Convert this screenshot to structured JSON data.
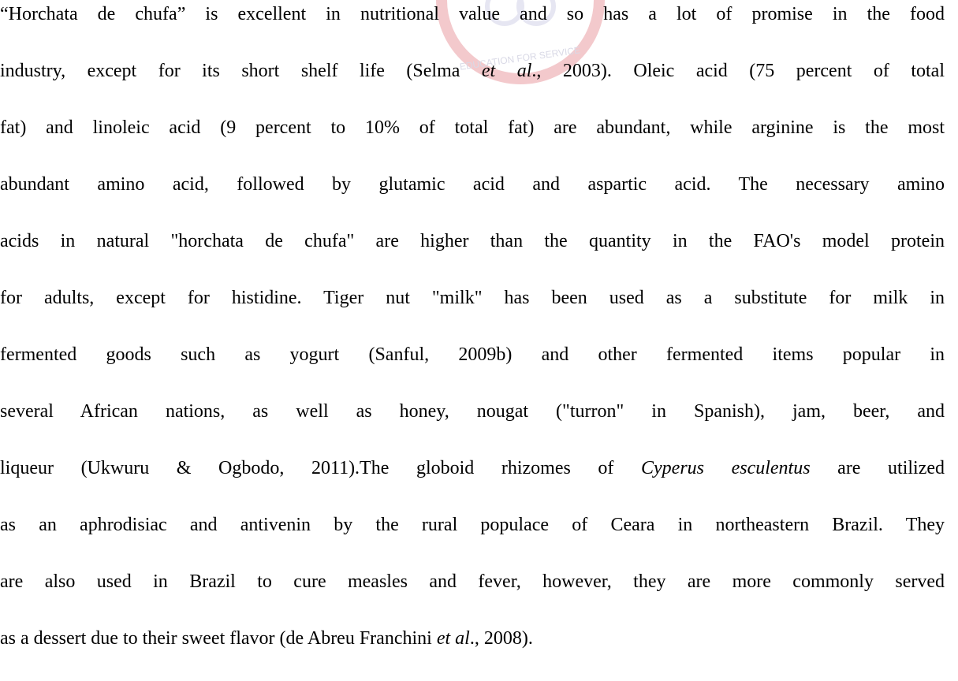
{
  "watermark_text": "EDUCATION FOR SERVICE",
  "paragraph": {
    "lines": [
      [
        "“Horchata de chufa” is excellent in nutritional value and so has a lot of promise in the food"
      ],
      [
        "industry, except for its short shelf life (Selma ",
        {
          "text": "et al",
          "italic": true
        },
        "., 2003). Oleic acid (75 percent of total"
      ],
      [
        "fat) and linoleic acid (9 percent to 10% of total fat) are abundant, while arginine is the most"
      ],
      [
        "abundant amino acid, followed by glutamic acid and aspartic acid. The necessary amino"
      ],
      [
        "acids in natural \"horchata de chufa\" are higher than the quantity in the FAO's model protein"
      ],
      [
        "for adults, except for histidine. Tiger nut \"milk\" has been used as a substitute for milk in"
      ],
      [
        "fermented goods such as yogurt (Sanful, 2009b) and other fermented items popular in"
      ],
      [
        "several African nations, as well as honey, nougat (\"turron\" in Spanish), jam, beer, and"
      ],
      [
        "liqueur (Ukwuru & Ogbodo, 2011).The globoid rhizomes of ",
        {
          "text": "Cyperus esculentus",
          "italic": true
        },
        " are utilized"
      ],
      [
        "as an aphrodisiac and antivenin by the rural populace of Ceara in northeastern Brazil. They"
      ],
      [
        "are also used in Brazil to cure measles and fever, however, they are more commonly served"
      ],
      [
        "as a dessert due to their sweet flavor (de Abreu Franchini ",
        {
          "text": "et al",
          "italic": true
        },
        "., 2008)."
      ]
    ]
  }
}
